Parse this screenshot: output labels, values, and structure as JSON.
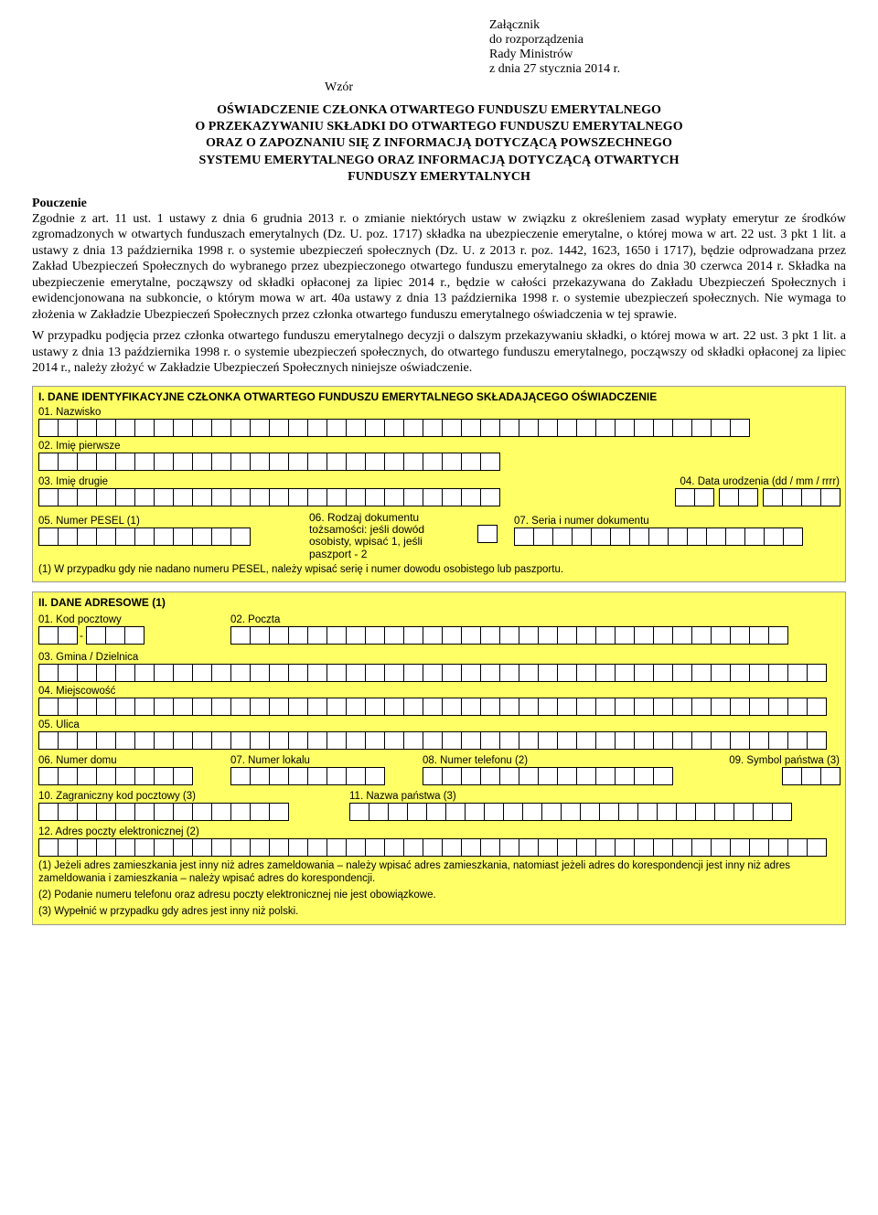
{
  "header": {
    "line1": "Załącznik",
    "line2": "do rozporządzenia",
    "line3": "Rady Ministrów",
    "line4": "z dnia 27 stycznia 2014 r."
  },
  "wzor": "Wzór",
  "title": {
    "l1": "OŚWIADCZENIE CZŁONKA OTWARTEGO FUNDUSZU EMERYTALNEGO",
    "l2": "O PRZEKAZYWANIU SKŁADKI DO OTWARTEGO FUNDUSZU EMERYTALNEGO",
    "l3": "ORAZ O ZAPOZNANIU SIĘ Z INFORMACJĄ DOTYCZĄCĄ POWSZECHNEGO",
    "l4": "SYSTEMU EMERYTALNEGO ORAZ INFORMACJĄ DOTYCZĄCĄ OTWARTYCH",
    "l5": "FUNDUSZY EMERYTALNYCH"
  },
  "pouczenie_label": "Pouczenie",
  "para1": "Zgodnie z art. 11 ust. 1 ustawy z dnia 6 grudnia 2013 r. o zmianie niektórych ustaw w związku z określeniem zasad wypłaty emerytur ze środków zgromadzonych w otwartych funduszach emerytalnych (Dz. U. poz. 1717) składka na ubezpieczenie emerytalne, o której mowa w art. 22 ust. 3 pkt 1 lit. a ustawy z dnia 13 października 1998 r. o systemie ubezpieczeń społecznych (Dz. U. z 2013 r. poz. 1442, 1623, 1650 i 1717), będzie odprowadzana przez Zakład Ubezpieczeń Społecznych do wybranego przez ubezpieczonego otwartego funduszu emerytalnego za okres do dnia 30 czerwca 2014 r. Składka na ubezpieczenie emerytalne, począwszy od składki opłaconej za lipiec 2014 r., będzie w całości przekazywana do Zakładu Ubezpieczeń Społecznych i ewidencjonowana na subkoncie, o którym mowa w art. 40a ustawy z dnia 13 października 1998 r. o systemie ubezpieczeń społecznych. Nie wymaga to złożenia w Zakładzie Ubezpieczeń Społecznych przez członka otwartego funduszu emerytalnego oświadczenia w tej sprawie.",
  "para2": "W przypadku podjęcia przez członka otwartego funduszu emerytalnego decyzji o dalszym przekazywaniu składki, o której mowa w art. 22 ust. 3 pkt 1 lit. a ustawy z dnia 13 października 1998 r. o systemie ubezpieczeń społecznych, do otwartego funduszu emerytalnego, począwszy od składki opłaconej za lipiec 2014 r., należy złożyć w Zakładzie Ubezpieczeń Społecznych niniejsze oświadczenie.",
  "section1": {
    "title": "I. DANE IDENTYFIKACYJNE CZŁONKA OTWARTEGO FUNDUSZU EMERYTALNEGO SKŁADAJĄCEGO OŚWIADCZENIE",
    "f01": "01. Nazwisko",
    "f02": "02. Imię pierwsze",
    "f03": "03. Imię drugie",
    "f04": "04. Data urodzenia (dd / mm / rrrr)",
    "f05": "05. Numer PESEL (1)",
    "f06_l1": "06. Rodzaj dokumentu",
    "f06_l2": "tożsamości: jeśli dowód",
    "f06_l3": "osobisty, wpisać 1, jeśli",
    "f06_l4": "paszport - 2",
    "f07": "07. Seria i numer dokumentu",
    "note": "(1) W przypadku gdy nie nadano numeru PESEL, należy wpisać serię i numer dowodu osobistego lub paszportu."
  },
  "section2": {
    "title": "II. DANE ADRESOWE (1)",
    "f01": "01. Kod pocztowy",
    "f02": "02. Poczta",
    "f03": "03. Gmina / Dzielnica",
    "f04": "04. Miejscowość",
    "f05": "05. Ulica",
    "f06": "06. Numer domu",
    "f07": "07. Numer lokalu",
    "f08": "08. Numer telefonu (2)",
    "f09": "09. Symbol państwa (3)",
    "f10": "10. Zagraniczny kod pocztowy (3)",
    "f11": "11. Nazwa państwa (3)",
    "f12": "12. Adres poczty elektronicznej (2)",
    "note1": "(1) Jeżeli adres zamieszkania jest inny niż adres zameldowania – należy wpisać adres zamieszkania, natomiast jeżeli adres do korespondencji jest inny niż adres zameldowania i zamieszkania – należy wpisać adres do korespondencji.",
    "note2": "(2) Podanie numeru telefonu oraz adresu poczty elektronicznej nie jest obowiązkowe.",
    "note3": "(3) Wypełnić w przypadku gdy adres jest inny niż polski."
  },
  "cell_counts": {
    "nazwisko": 37,
    "imie1": 24,
    "imie2": 24,
    "data_dd": 2,
    "data_mm": 2,
    "data_rr": 4,
    "pesel": 11,
    "rodzaj": 1,
    "seria": 15,
    "kod1": 2,
    "kod2": 3,
    "poczta": 29,
    "gmina": 41,
    "miejscowosc": 41,
    "ulica": 41,
    "nrdomu": 8,
    "nrlokalu": 8,
    "telefon": 13,
    "symbol": 3,
    "zagr_kod": 13,
    "nazwa_panstwa": 23,
    "email": 41
  },
  "colors": {
    "bg_form": "#ffff66",
    "cell_border": "#000000",
    "cell_bg": "#ffffff",
    "section_border": "#999999"
  }
}
